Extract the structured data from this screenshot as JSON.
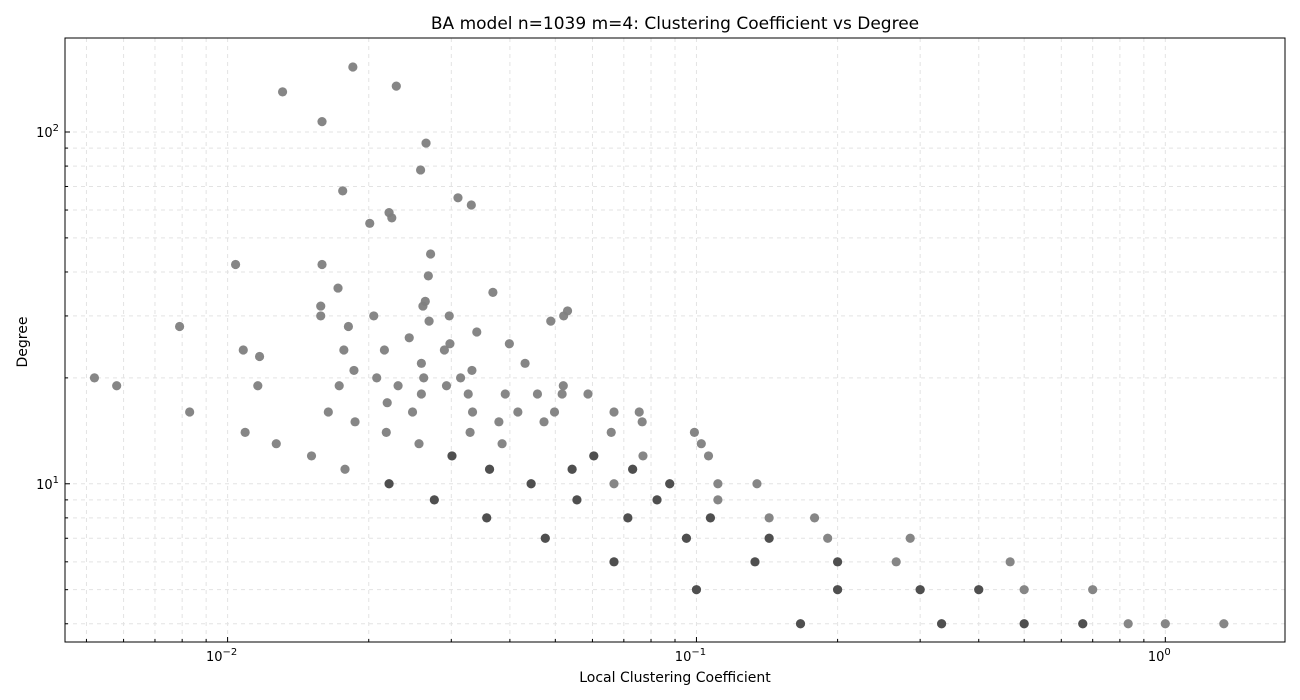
{
  "chart_data": {
    "type": "scatter",
    "title": "BA model n=1039 m=4: Clustering Coefficient vs Degree",
    "xlabel": "Local Clustering Coefficient",
    "ylabel": "Degree",
    "xscale": "log",
    "yscale": "log",
    "xlim": [
      0.0045,
      1.8
    ],
    "ylim": [
      3.55,
      185
    ],
    "grid": true,
    "x_ticks": [
      {
        "value": 0.01,
        "base": "10",
        "exp": "−2"
      },
      {
        "value": 0.1,
        "base": "10",
        "exp": "−1"
      },
      {
        "value": 1,
        "base": "10",
        "exp": "0"
      }
    ],
    "y_ticks": [
      {
        "value": 10,
        "base": "10",
        "exp": "1"
      },
      {
        "value": 100,
        "base": "10",
        "exp": "2"
      }
    ],
    "point_color": "#808080",
    "points": [
      [
        0.0052,
        20
      ],
      [
        0.0058,
        19
      ],
      [
        0.0079,
        28
      ],
      [
        0.0083,
        16
      ],
      [
        0.0104,
        42
      ],
      [
        0.0108,
        24
      ],
      [
        0.0109,
        14
      ],
      [
        0.0116,
        19
      ],
      [
        0.0117,
        23
      ],
      [
        0.0127,
        13
      ],
      [
        0.0131,
        130
      ],
      [
        0.0151,
        12
      ],
      [
        0.0158,
        30
      ],
      [
        0.0158,
        32
      ],
      [
        0.0159,
        107
      ],
      [
        0.0159,
        42
      ],
      [
        0.0164,
        16
      ],
      [
        0.0172,
        36
      ],
      [
        0.0173,
        19
      ],
      [
        0.0176,
        68
      ],
      [
        0.0177,
        24
      ],
      [
        0.0178,
        11
      ],
      [
        0.0181,
        28
      ],
      [
        0.0185,
        153
      ],
      [
        0.0186,
        21
      ],
      [
        0.0187,
        15
      ],
      [
        0.0201,
        55
      ],
      [
        0.0205,
        30
      ],
      [
        0.0208,
        20
      ],
      [
        0.0216,
        24
      ],
      [
        0.0218,
        14
      ],
      [
        0.0219,
        17
      ],
      [
        0.0221,
        59
      ],
      [
        0.0221,
        10
      ],
      [
        0.0224,
        57
      ],
      [
        0.0229,
        135
      ],
      [
        0.0231,
        19
      ],
      [
        0.0244,
        26
      ],
      [
        0.0248,
        16
      ],
      [
        0.0256,
        13
      ],
      [
        0.0258,
        78
      ],
      [
        0.0259,
        22
      ],
      [
        0.0259,
        18
      ],
      [
        0.0261,
        32
      ],
      [
        0.0262,
        20
      ],
      [
        0.0264,
        33
      ],
      [
        0.0265,
        93
      ],
      [
        0.0268,
        39
      ],
      [
        0.0269,
        29
      ],
      [
        0.0271,
        45
      ],
      [
        0.0276,
        9
      ],
      [
        0.029,
        24
      ],
      [
        0.0293,
        19
      ],
      [
        0.0297,
        30
      ],
      [
        0.0298,
        25
      ],
      [
        0.0301,
        12
      ],
      [
        0.031,
        65
      ],
      [
        0.0314,
        20
      ],
      [
        0.0326,
        18
      ],
      [
        0.0329,
        14
      ],
      [
        0.0331,
        62
      ],
      [
        0.0332,
        21
      ],
      [
        0.0333,
        16
      ],
      [
        0.034,
        27
      ],
      [
        0.0357,
        8
      ],
      [
        0.0362,
        11
      ],
      [
        0.0368,
        35
      ],
      [
        0.0379,
        15
      ],
      [
        0.0385,
        13
      ],
      [
        0.0391,
        18
      ],
      [
        0.0399,
        25
      ],
      [
        0.0416,
        16
      ],
      [
        0.0431,
        22
      ],
      [
        0.0444,
        10
      ],
      [
        0.0458,
        18
      ],
      [
        0.0476,
        7
      ],
      [
        0.0473,
        15
      ],
      [
        0.0489,
        29
      ],
      [
        0.0498,
        16
      ],
      [
        0.0517,
        18
      ],
      [
        0.052,
        19
      ],
      [
        0.0521,
        30
      ],
      [
        0.0531,
        31
      ],
      [
        0.0543,
        11
      ],
      [
        0.0556,
        9
      ],
      [
        0.0587,
        18
      ],
      [
        0.0604,
        12
      ],
      [
        0.0658,
        14
      ],
      [
        0.0667,
        6
      ],
      [
        0.0667,
        10
      ],
      [
        0.0667,
        16
      ],
      [
        0.0714,
        8
      ],
      [
        0.0731,
        11
      ],
      [
        0.0755,
        16
      ],
      [
        0.0766,
        15
      ],
      [
        0.0769,
        12
      ],
      [
        0.0824,
        9
      ],
      [
        0.0877,
        10
      ],
      [
        0.0952,
        7
      ],
      [
        0.099,
        14
      ],
      [
        0.1,
        5
      ],
      [
        0.1024,
        13
      ],
      [
        0.1061,
        12
      ],
      [
        0.1071,
        8
      ],
      [
        0.1111,
        10
      ],
      [
        0.1111,
        9
      ],
      [
        0.1333,
        6
      ],
      [
        0.1346,
        10
      ],
      [
        0.1429,
        7
      ],
      [
        0.1429,
        8
      ],
      [
        0.1667,
        4
      ],
      [
        0.1786,
        8
      ],
      [
        0.1905,
        7
      ],
      [
        0.2,
        6
      ],
      [
        0.2,
        5
      ],
      [
        0.2667,
        6
      ],
      [
        0.2857,
        7
      ],
      [
        0.3,
        5
      ],
      [
        0.3333,
        4
      ],
      [
        0.4,
        5
      ],
      [
        0.4667,
        6
      ],
      [
        0.5,
        4
      ],
      [
        0.5,
        5
      ],
      [
        0.6667,
        4
      ],
      [
        0.7,
        5
      ],
      [
        0.8333,
        4
      ],
      [
        1.0,
        4
      ],
      [
        1.333,
        4
      ]
    ],
    "dark_points": [
      [
        0.1667,
        4
      ],
      [
        0.1,
        5
      ],
      [
        0.0667,
        6
      ],
      [
        0.0476,
        7
      ],
      [
        0.0357,
        8
      ],
      [
        0.3333,
        4
      ],
      [
        0.2,
        5
      ],
      [
        0.1333,
        6
      ],
      [
        0.0952,
        7
      ],
      [
        0.0714,
        8
      ],
      [
        0.0556,
        9
      ],
      [
        0.0444,
        10
      ],
      [
        0.0362,
        11
      ],
      [
        0.0301,
        12
      ],
      [
        0.0221,
        10
      ],
      [
        0.0276,
        9
      ],
      [
        0.0543,
        11
      ],
      [
        0.0604,
        12
      ],
      [
        0.1429,
        7
      ],
      [
        0.4,
        5
      ],
      [
        0.6667,
        4
      ],
      [
        0.5,
        4
      ],
      [
        0.3,
        5
      ],
      [
        0.2,
        6
      ],
      [
        0.1071,
        8
      ],
      [
        0.0824,
        9
      ],
      [
        0.0877,
        10
      ],
      [
        0.0731,
        11
      ]
    ]
  }
}
